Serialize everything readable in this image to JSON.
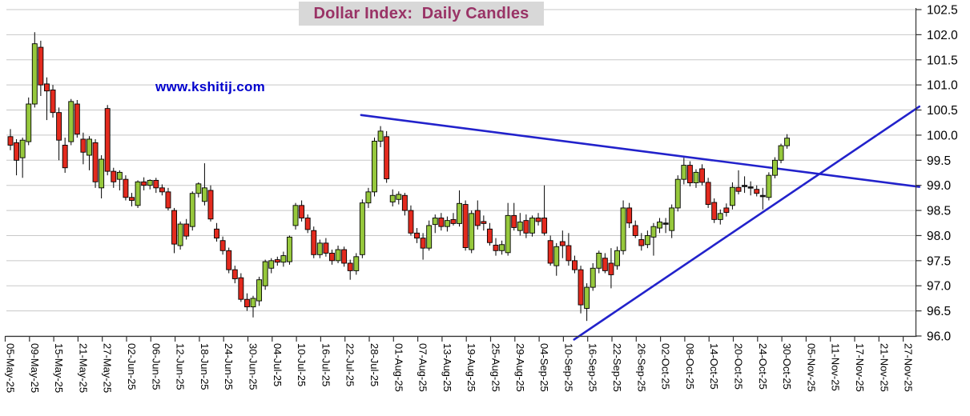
{
  "title": {
    "text": "Dollar Index:  Daily Candles",
    "color": "#993366",
    "background": "#d8d8d8"
  },
  "watermark": {
    "text": "www.kshitij.com",
    "color": "#0000cd"
  },
  "chart_data": {
    "type": "candlestick",
    "title": "Dollar Index: Daily Candles",
    "grid": true,
    "y_axis": {
      "side": "right",
      "min": 96.0,
      "max": 102.5,
      "step": 0.5,
      "tick_labels": [
        "102.5",
        "102.0",
        "101.5",
        "101.0",
        "100.5",
        "100.0",
        "99.5",
        "99.0",
        "98.5",
        "98.0",
        "97.5",
        "97.0",
        "96.5",
        "96.0"
      ]
    },
    "x_axis": {
      "label_every_n_candles": 4,
      "tick_labels": [
        "05-May-25",
        "09-May-25",
        "15-May-25",
        "21-May-25",
        "27-May-25",
        "02-Jun-25",
        "06-Jun-25",
        "12-Jun-25",
        "18-Jun-25",
        "24-Jun-25",
        "30-Jun-25",
        "04-Jul-25",
        "10-Jul-25",
        "16-Jul-25",
        "22-Jul-25",
        "28-Jul-25",
        "01-Aug-25",
        "07-Aug-25",
        "13-Aug-25",
        "19-Aug-25",
        "25-Aug-25",
        "29-Aug-25",
        "04-Sep-25",
        "10-Sep-25",
        "16-Sep-25",
        "22-Sep-25",
        "26-Sep-25",
        "02-Oct-25",
        "08-Oct-25",
        "14-Oct-25",
        "20-Oct-25",
        "24-Oct-25",
        "30-Oct-25",
        "05-Nov-25",
        "11-Nov-25",
        "17-Nov-25",
        "21-Nov-25",
        "27-Nov-25"
      ]
    },
    "candle_columns": [
      "date",
      "open",
      "high",
      "low",
      "close"
    ],
    "candles": [
      [
        "05-May-25",
        99.97,
        100.12,
        99.7,
        99.8
      ],
      [
        "06-May-25",
        99.85,
        99.92,
        99.2,
        99.5
      ],
      [
        "07-May-25",
        99.55,
        99.95,
        99.15,
        99.9
      ],
      [
        "08-May-25",
        99.87,
        100.75,
        99.8,
        100.62
      ],
      [
        "09-May-25",
        100.62,
        102.05,
        100.55,
        101.82
      ],
      [
        "12-May-25",
        101.75,
        101.88,
        100.78,
        101.0
      ],
      [
        "13-May-25",
        101.02,
        101.15,
        100.3,
        100.88
      ],
      [
        "14-May-25",
        100.9,
        101.0,
        100.35,
        100.45
      ],
      [
        "15-May-25",
        100.45,
        100.55,
        99.5,
        99.9
      ],
      [
        "16-May-25",
        99.8,
        99.95,
        99.25,
        99.35
      ],
      [
        "19-May-25",
        99.87,
        100.72,
        99.8,
        100.67
      ],
      [
        "20-May-25",
        100.62,
        100.7,
        99.95,
        100.02
      ],
      [
        "21-May-25",
        99.92,
        100.05,
        99.42,
        99.66
      ],
      [
        "22-May-25",
        99.6,
        99.98,
        99.3,
        99.92
      ],
      [
        "23-May-25",
        99.85,
        99.92,
        98.95,
        99.07
      ],
      [
        "26-May-25",
        98.95,
        99.6,
        98.74,
        99.52
      ],
      [
        "27-May-25",
        100.53,
        100.6,
        99.2,
        99.28
      ],
      [
        "28-May-25",
        99.28,
        99.35,
        98.95,
        99.07
      ],
      [
        "29-May-25",
        99.12,
        99.3,
        98.9,
        99.26
      ],
      [
        "30-May-25",
        99.12,
        99.2,
        98.7,
        98.76
      ],
      [
        "02-Jun-25",
        98.76,
        98.85,
        98.58,
        98.7
      ],
      [
        "03-Jun-25",
        98.6,
        99.1,
        98.55,
        99.07
      ],
      [
        "04-Jun-25",
        99.07,
        99.16,
        98.9,
        99.0
      ],
      [
        "05-Jun-25",
        99.0,
        99.12,
        98.92,
        99.1
      ],
      [
        "06-Jun-25",
        99.1,
        99.15,
        98.85,
        98.95
      ],
      [
        "09-Jun-25",
        98.95,
        99.02,
        98.8,
        98.87
      ],
      [
        "10-Jun-25",
        98.87,
        98.95,
        98.5,
        98.55
      ],
      [
        "11-Jun-25",
        98.5,
        98.55,
        97.65,
        97.83
      ],
      [
        "12-Jun-25",
        97.8,
        98.28,
        97.72,
        98.23
      ],
      [
        "13-Jun-25",
        98.23,
        98.33,
        97.92,
        97.99
      ],
      [
        "16-Jun-25",
        98.18,
        98.88,
        98.1,
        98.84
      ],
      [
        "17-Jun-25",
        98.84,
        99.06,
        98.76,
        99.03
      ],
      [
        "18-Jun-25",
        98.68,
        99.44,
        98.6,
        98.95
      ],
      [
        "19-Jun-25",
        98.9,
        99.0,
        98.28,
        98.33
      ],
      [
        "20-Jun-25",
        98.13,
        98.25,
        97.88,
        97.95
      ],
      [
        "23-Jun-25",
        97.9,
        97.98,
        97.62,
        97.7
      ],
      [
        "24-Jun-25",
        97.7,
        97.76,
        97.25,
        97.32
      ],
      [
        "25-Jun-25",
        97.32,
        97.4,
        97.05,
        97.14
      ],
      [
        "26-Jun-25",
        97.16,
        97.25,
        96.68,
        96.73
      ],
      [
        "27-Jun-25",
        96.73,
        96.85,
        96.5,
        96.58
      ],
      [
        "30-Jun-25",
        96.58,
        96.8,
        96.37,
        96.75
      ],
      [
        "01-Jul-25",
        96.7,
        97.18,
        96.6,
        97.12
      ],
      [
        "02-Jul-25",
        97.0,
        97.52,
        96.92,
        97.48
      ],
      [
        "03-Jul-25",
        97.35,
        97.55,
        97.25,
        97.5
      ],
      [
        "04-Jul-25",
        97.52,
        97.58,
        97.4,
        97.47
      ],
      [
        "07-Jul-25",
        97.47,
        97.68,
        97.38,
        97.6
      ],
      [
        "08-Jul-25",
        97.48,
        98.0,
        97.42,
        97.97
      ],
      [
        "09-Jul-25",
        98.2,
        98.65,
        98.12,
        98.6
      ],
      [
        "10-Jul-25",
        98.6,
        98.7,
        98.28,
        98.35
      ],
      [
        "11-Jul-25",
        98.35,
        98.42,
        98.05,
        98.12
      ],
      [
        "14-Jul-25",
        98.1,
        98.18,
        97.55,
        97.62
      ],
      [
        "15-Jul-25",
        97.62,
        97.92,
        97.55,
        97.85
      ],
      [
        "16-Jul-25",
        97.85,
        97.95,
        97.58,
        97.65
      ],
      [
        "17-Jul-25",
        97.65,
        97.72,
        97.42,
        97.5
      ],
      [
        "18-Jul-25",
        97.5,
        97.8,
        97.45,
        97.72
      ],
      [
        "21-Jul-25",
        97.72,
        97.78,
        97.38,
        97.45
      ],
      [
        "22-Jul-25",
        97.45,
        97.52,
        97.12,
        97.3
      ],
      [
        "23-Jul-25",
        97.3,
        97.65,
        97.22,
        97.58
      ],
      [
        "24-Jul-25",
        97.62,
        98.72,
        97.55,
        98.65
      ],
      [
        "25-Jul-25",
        98.65,
        98.95,
        98.55,
        98.87
      ],
      [
        "28-Jul-25",
        98.87,
        99.95,
        98.78,
        99.88
      ],
      [
        "29-Jul-25",
        99.88,
        100.18,
        99.76,
        100.08
      ],
      [
        "30-Jul-25",
        99.97,
        100.08,
        99.05,
        99.13
      ],
      [
        "31-Jul-25",
        98.67,
        98.92,
        98.58,
        98.8
      ],
      [
        "01-Aug-25",
        98.72,
        98.88,
        98.62,
        98.82
      ],
      [
        "04-Aug-25",
        98.8,
        98.85,
        98.4,
        98.5
      ],
      [
        "05-Aug-25",
        98.5,
        98.6,
        98.0,
        98.05
      ],
      [
        "06-Aug-25",
        98.05,
        98.15,
        97.85,
        97.95
      ],
      [
        "07-Aug-25",
        97.95,
        98.05,
        97.52,
        97.75
      ],
      [
        "08-Aug-25",
        97.75,
        98.3,
        97.7,
        98.2
      ],
      [
        "11-Aug-25",
        98.22,
        98.42,
        98.05,
        98.35
      ],
      [
        "12-Aug-25",
        98.35,
        98.45,
        98.1,
        98.18
      ],
      [
        "13-Aug-25",
        98.18,
        98.38,
        98.08,
        98.3
      ],
      [
        "14-Aug-25",
        98.32,
        98.45,
        98.2,
        98.24
      ],
      [
        "15-Aug-25",
        98.24,
        98.9,
        98.18,
        98.64
      ],
      [
        "18-Aug-25",
        98.62,
        98.7,
        97.7,
        97.76
      ],
      [
        "19-Aug-25",
        97.72,
        98.5,
        97.65,
        98.44
      ],
      [
        "20-Aug-25",
        98.5,
        98.7,
        98.12,
        98.2
      ],
      [
        "21-Aug-25",
        98.28,
        98.4,
        98.1,
        98.24
      ],
      [
        "22-Aug-25",
        98.13,
        98.25,
        97.8,
        97.86
      ],
      [
        "25-Aug-25",
        97.81,
        97.95,
        97.6,
        97.7
      ],
      [
        "26-Aug-25",
        97.7,
        97.9,
        97.62,
        97.82
      ],
      [
        "27-Aug-25",
        97.66,
        98.65,
        97.6,
        98.4
      ],
      [
        "28-Aug-25",
        98.4,
        98.65,
        98.1,
        98.16
      ],
      [
        "29-Aug-25",
        98.1,
        98.45,
        98.0,
        98.27
      ],
      [
        "01-Sep-25",
        98.3,
        98.42,
        97.95,
        98.05
      ],
      [
        "02-Sep-25",
        98.05,
        98.4,
        97.98,
        98.35
      ],
      [
        "03-Sep-25",
        98.35,
        98.45,
        98.2,
        98.28
      ],
      [
        "04-Sep-25",
        98.35,
        99.0,
        98.0,
        98.05
      ],
      [
        "05-Sep-25",
        97.9,
        98.0,
        97.4,
        97.45
      ],
      [
        "08-Sep-25",
        97.4,
        97.85,
        97.2,
        97.78
      ],
      [
        "09-Sep-25",
        97.88,
        98.1,
        97.55,
        97.8
      ],
      [
        "10-Sep-25",
        97.8,
        98.05,
        97.4,
        97.5
      ],
      [
        "11-Sep-25",
        97.5,
        97.6,
        97.25,
        97.32
      ],
      [
        "12-Sep-25",
        97.32,
        97.4,
        96.45,
        96.62
      ],
      [
        "15-Sep-25",
        96.55,
        97.05,
        96.3,
        96.97
      ],
      [
        "16-Sep-25",
        96.97,
        97.45,
        96.9,
        97.35
      ],
      [
        "17-Sep-25",
        97.35,
        97.7,
        97.25,
        97.65
      ],
      [
        "18-Sep-25",
        97.55,
        97.65,
        97.25,
        97.3
      ],
      [
        "19-Sep-25",
        97.45,
        97.75,
        96.95,
        97.22
      ],
      [
        "22-Sep-25",
        97.4,
        97.78,
        97.32,
        97.7
      ],
      [
        "23-Sep-25",
        97.7,
        98.7,
        97.62,
        98.55
      ],
      [
        "24-Sep-25",
        98.55,
        98.65,
        98.15,
        98.25
      ],
      [
        "25-Sep-25",
        98.2,
        98.3,
        97.95,
        98.0
      ],
      [
        "26-Sep-25",
        97.92,
        98.05,
        97.7,
        97.8
      ],
      [
        "29-Sep-25",
        97.82,
        98.1,
        97.75,
        98.0
      ],
      [
        "30-Sep-25",
        97.97,
        98.25,
        97.6,
        98.18
      ],
      [
        "01-Oct-25",
        98.15,
        98.35,
        98.05,
        98.27
      ],
      [
        "02-Oct-25",
        98.25,
        98.35,
        98.05,
        98.24
      ],
      [
        "03-Oct-25",
        98.1,
        98.62,
        97.95,
        98.55
      ],
      [
        "06-Oct-25",
        98.55,
        99.2,
        98.48,
        99.12
      ],
      [
        "07-Oct-25",
        99.12,
        99.55,
        99.02,
        99.4
      ],
      [
        "08-Oct-25",
        99.4,
        99.48,
        98.98,
        99.05
      ],
      [
        "09-Oct-25",
        99.05,
        99.32,
        98.95,
        99.26
      ],
      [
        "10-Oct-25",
        99.33,
        99.42,
        99.0,
        99.06
      ],
      [
        "13-Oct-25",
        99.06,
        99.15,
        98.55,
        98.62
      ],
      [
        "14-Oct-25",
        98.66,
        98.74,
        98.25,
        98.32
      ],
      [
        "15-Oct-25",
        98.32,
        98.52,
        98.22,
        98.44
      ],
      [
        "16-Oct-25",
        98.55,
        98.64,
        98.38,
        98.46
      ],
      [
        "17-Oct-25",
        98.6,
        99.06,
        98.52,
        98.96
      ],
      [
        "20-Oct-25",
        98.96,
        99.3,
        98.82,
        98.88
      ],
      [
        "21-Oct-25",
        99.0,
        99.18,
        98.85,
        99.0
      ],
      [
        "22-Oct-25",
        98.97,
        99.08,
        98.8,
        98.96
      ],
      [
        "23-Oct-25",
        98.92,
        99.0,
        98.78,
        98.84
      ],
      [
        "24-Oct-25",
        98.8,
        98.95,
        98.52,
        98.78
      ],
      [
        "27-Oct-25",
        98.76,
        99.26,
        98.7,
        99.2
      ],
      [
        "28-Oct-25",
        99.2,
        99.56,
        99.14,
        99.5
      ],
      [
        "29-Oct-25",
        99.5,
        99.83,
        99.44,
        99.79
      ],
      [
        "30-Oct-25",
        99.79,
        100.02,
        99.73,
        99.94
      ]
    ],
    "trendlines": [
      {
        "name": "descending-resistance",
        "from": {
          "slot": 57.8,
          "value": 100.4
        },
        "to": {
          "slot": 149.8,
          "value": 98.97
        }
      },
      {
        "name": "ascending-support",
        "from": {
          "slot": 92.9,
          "value": 95.93
        },
        "to": {
          "slot": 149.8,
          "value": 100.57
        }
      }
    ],
    "colors": {
      "up": "#96c83c",
      "down": "#e32a1e",
      "doji": "#111111",
      "candle_border": "#000000",
      "wick": "#000000",
      "grid": "#c8c8c8",
      "axis": "#333333",
      "tick_text": "#000000",
      "trendline": "#2222cb"
    }
  }
}
